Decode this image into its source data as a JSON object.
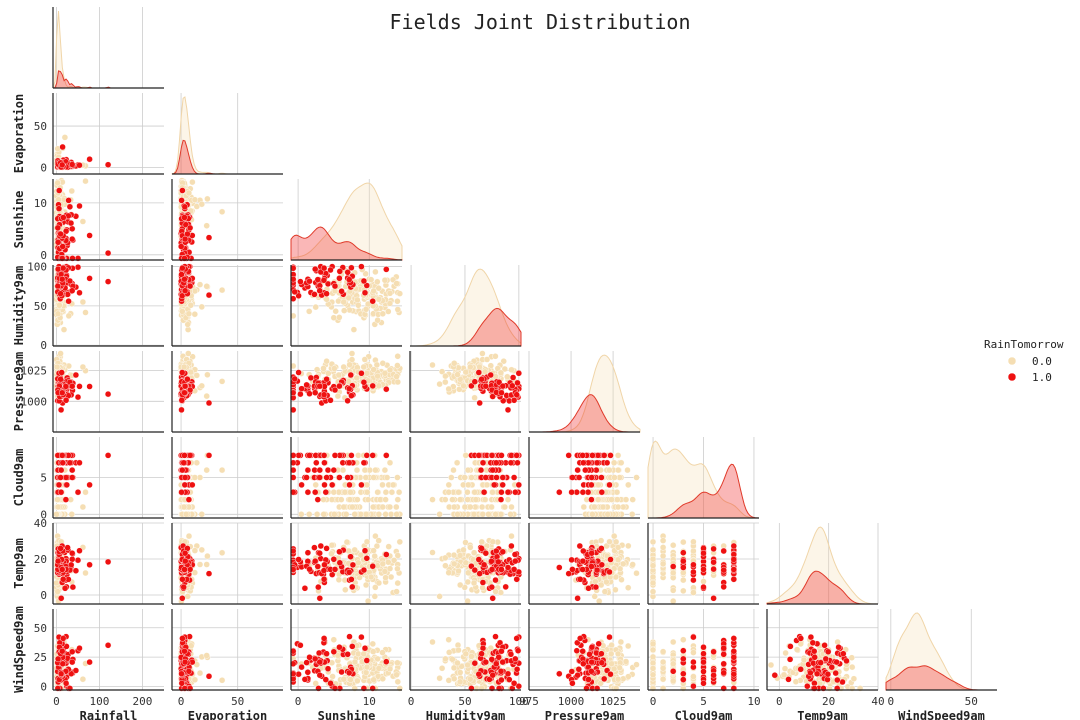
{
  "chart_data": {
    "type": "scatter",
    "title": "Fields Joint Distribution",
    "variables": [
      "Rainfall",
      "Evaporation",
      "Sunshine",
      "Humidity9am",
      "Pressure9am",
      "Cloud9am",
      "Temp9am",
      "WindSpeed9am"
    ],
    "ranges": {
      "Rainfall": [
        -8,
        250
      ],
      "Evaporation": [
        -8,
        90
      ],
      "Sunshine": [
        -1,
        14.6
      ],
      "Humidity9am": [
        -1,
        102
      ],
      "Pressure9am": [
        975,
        1041
      ],
      "Cloud9am": [
        -0.5,
        10.5
      ],
      "Temp9am": [
        -5,
        40
      ],
      "WindSpeed9am": [
        -3,
        66
      ]
    },
    "ticks": {
      "Rainfall": [
        0,
        100,
        200
      ],
      "Evaporation": [
        0,
        50
      ],
      "Sunshine": [
        0,
        10
      ],
      "Humidity9am": [
        0,
        50,
        100
      ],
      "Pressure9am": [
        975,
        1000,
        1025
      ],
      "Cloud9am": [
        0,
        5,
        10
      ],
      "Temp9am": [
        0,
        20,
        40
      ],
      "WindSpeed9am": [
        0,
        50
      ]
    },
    "yticks": {
      "Evaporation": [
        0,
        50
      ],
      "Sunshine": [
        0,
        10
      ],
      "Humidity9am": [
        0,
        50,
        100
      ],
      "Pressure9am": [
        1000,
        1025
      ],
      "Cloud9am": [
        0,
        5
      ],
      "Temp9am": [
        0,
        20,
        40
      ],
      "WindSpeed9am": [
        0,
        25,
        50
      ]
    },
    "legend": {
      "title": "RainTomorrow",
      "placement": "right",
      "entries": [
        "0.0",
        "1.0"
      ]
    },
    "series": [
      {
        "name": "0.0",
        "color": "#f5deb3",
        "stats": {
          "Rainfall": [
            3,
            8
          ],
          "Evaporation": [
            6,
            5
          ],
          "Sunshine": [
            9,
            3
          ],
          "Humidity9am": [
            62,
            16
          ],
          "Pressure9am": [
            1020,
            6
          ],
          "Cloud9am": [
            2.5,
            2.8
          ],
          "Temp9am": [
            17,
            7
          ],
          "WindSpeed9am": [
            16,
            10
          ]
        }
      },
      {
        "name": "1.0",
        "color": "#ee1111",
        "stats": {
          "Rainfall": [
            30,
            25
          ],
          "Evaporation": [
            5,
            4
          ],
          "Sunshine": [
            4,
            3.2
          ],
          "Humidity9am": [
            82,
            12
          ],
          "Pressure9am": [
            1010,
            6
          ],
          "Cloud9am": [
            6.5,
            2.0
          ],
          "Temp9am": [
            17,
            6
          ],
          "WindSpeed9am": [
            18,
            11
          ]
        }
      }
    ],
    "grid": true
  }
}
